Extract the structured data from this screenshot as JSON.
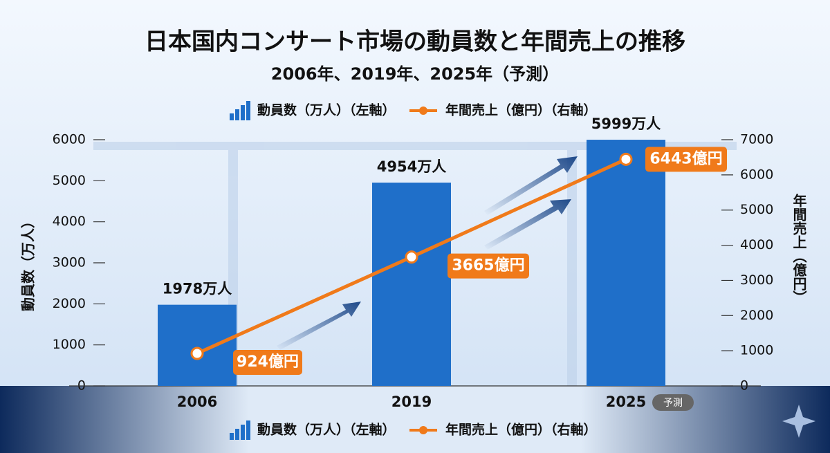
{
  "chart_data": {
    "type": "bar_line",
    "title": "日本国内コンサート市場の動員数と年間売上の推移",
    "subtitle": "2006年、2019年、2025年（予測）",
    "categories": [
      "2006",
      "2019",
      "2025"
    ],
    "x_badge": "予測",
    "series": [
      {
        "name": "動員数（万人）（左軸）",
        "type": "bar",
        "color": "#1f6fc9",
        "values": [
          1978,
          4954,
          5999
        ],
        "value_labels": [
          "1978万人",
          "4954万人",
          "5999万人"
        ]
      },
      {
        "name": "年間売上（億円）（右軸）",
        "type": "line",
        "axis": "y2",
        "color": "#f07a1a",
        "values": [
          924,
          3665,
          6443
        ],
        "value_labels": [
          "924億円",
          "3665億円",
          "6443億円"
        ]
      }
    ],
    "y_label": "動員数（万人）",
    "y2_label": "年間売上（億円）",
    "ylim": [
      0,
      6000
    ],
    "yticks": [
      0,
      1000,
      2000,
      3000,
      4000,
      5000,
      6000
    ],
    "y2lim": [
      0,
      7000
    ],
    "y2ticks": [
      0,
      1000,
      2000,
      3000,
      4000,
      5000,
      6000,
      7000
    ]
  }
}
